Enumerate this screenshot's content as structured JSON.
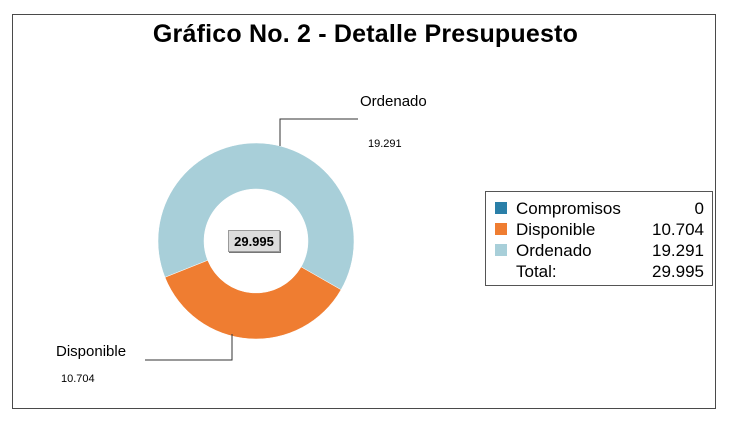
{
  "chart_data": {
    "type": "pie",
    "title": "Gráfico No. 2 - Detalle Presupuesto",
    "donut": true,
    "center_label": "29.995",
    "slices": [
      {
        "name": "Compromisos",
        "value": 0,
        "display": "0",
        "color": "#2a7fa8"
      },
      {
        "name": "Disponible",
        "value": 10704,
        "display": "10.704",
        "color": "#ef7d31"
      },
      {
        "name": "Ordenado",
        "value": 19291,
        "display": "19.291",
        "color": "#a8cfd9"
      }
    ],
    "total": {
      "label": "Total:",
      "display": "29.995"
    },
    "legend_position": "right"
  },
  "callouts": {
    "ordenado": {
      "name": "Ordenado",
      "value": "19.291"
    },
    "disponible": {
      "name": "Disponible",
      "value": "10.704"
    }
  }
}
